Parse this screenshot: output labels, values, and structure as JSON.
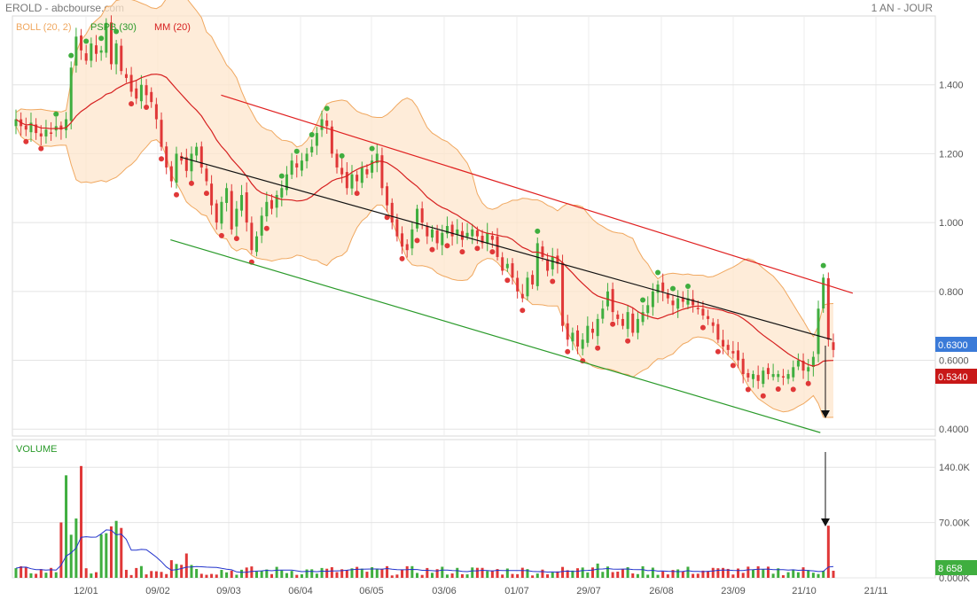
{
  "header": {
    "source": "EROLD - abcbourse.com",
    "period": "1 AN - JOUR"
  },
  "legend": {
    "boll": "BOLL (20, 2)",
    "pspb": "PSPB (30)",
    "mm": "MM (20)",
    "volume": "VOLUME"
  },
  "colors": {
    "up": "#3fae3f",
    "down": "#e03838",
    "boll_line": "#f0a860",
    "boll_fill": "#fde5cc",
    "mm": "#d62020",
    "volume_mm": "#2233cc",
    "trend_top": "#e02020",
    "trend_mid": "#111111",
    "trend_low": "#2a9a2a",
    "badge_blue": "#3a7ad8",
    "badge_red": "#c81818",
    "badge_green": "#3fae3f"
  },
  "chart_data": {
    "type": "candlestick",
    "x_ticks": [
      "12/01",
      "09/02",
      "09/03",
      "06/04",
      "06/05",
      "03/06",
      "01/07",
      "29/07",
      "26/08",
      "23/09",
      "21/10",
      "21/11"
    ],
    "price_axis": {
      "ticks": [
        "1.400",
        "1.200",
        "1.000",
        "0.800",
        "0.6000",
        "0.4000"
      ],
      "ylim": [
        0.38,
        1.6
      ]
    },
    "volume_axis": {
      "ticks": [
        "140.0K",
        "70.00K",
        "0.000K"
      ],
      "ylim": [
        0,
        175000
      ]
    },
    "last_price": "0.6300",
    "mm_value": "0.5340",
    "last_volume": "8 658",
    "closes": [
      1.3,
      1.28,
      1.27,
      1.29,
      1.26,
      1.25,
      1.27,
      1.26,
      1.28,
      1.27,
      1.3,
      1.45,
      1.54,
      1.5,
      1.47,
      1.52,
      1.49,
      1.5,
      1.58,
      1.46,
      1.52,
      1.44,
      1.42,
      1.38,
      1.36,
      1.4,
      1.37,
      1.35,
      1.3,
      1.22,
      1.16,
      1.12,
      1.2,
      1.18,
      1.15,
      1.2,
      1.22,
      1.16,
      1.12,
      1.05,
      1.0,
      1.06,
      1.1,
      0.98,
      1.04,
      1.08,
      1.0,
      0.92,
      0.96,
      1.02,
      1.06,
      1.04,
      1.08,
      1.1,
      1.14,
      1.18,
      1.16,
      1.18,
      1.2,
      1.22,
      1.26,
      1.3,
      1.28,
      1.2,
      1.16,
      1.14,
      1.1,
      1.14,
      1.12,
      1.16,
      1.14,
      1.18,
      1.2,
      1.1,
      1.05,
      1.0,
      0.96,
      0.93,
      0.92,
      0.98,
      1.04,
      1.0,
      0.96,
      0.98,
      0.94,
      0.97,
      0.99,
      0.96,
      0.98,
      0.95,
      0.97,
      0.98,
      0.96,
      0.94,
      0.97,
      0.95,
      0.9,
      0.86,
      0.88,
      0.84,
      0.8,
      0.78,
      0.84,
      0.82,
      0.94,
      0.9,
      0.86,
      0.9,
      0.88,
      0.7,
      0.66,
      0.68,
      0.64,
      0.66,
      0.7,
      0.68,
      0.72,
      0.75,
      0.8,
      0.74,
      0.72,
      0.7,
      0.74,
      0.68,
      0.72,
      0.74,
      0.76,
      0.8,
      0.82,
      0.8,
      0.78,
      0.76,
      0.78,
      0.77,
      0.78,
      0.76,
      0.75,
      0.73,
      0.72,
      0.7,
      0.66,
      0.64,
      0.63,
      0.62,
      0.6,
      0.56,
      0.55,
      0.56,
      0.54,
      0.57,
      0.56,
      0.56,
      0.56,
      0.55,
      0.56,
      0.58,
      0.6,
      0.57,
      0.58,
      0.61,
      0.75,
      0.84,
      0.66,
      0.63
    ],
    "trendlines": [
      {
        "name": "upper-resistance",
        "from": [
          "06/03",
          1.37
        ],
        "to": [
          "11/11",
          0.795
        ]
      },
      {
        "name": "mid-trend",
        "from": [
          "18/02",
          1.19
        ],
        "to": [
          "02/11",
          0.66
        ]
      },
      {
        "name": "lower-support",
        "from": [
          "14/02",
          0.95
        ],
        "to": [
          "28/10",
          0.39
        ]
      }
    ]
  }
}
